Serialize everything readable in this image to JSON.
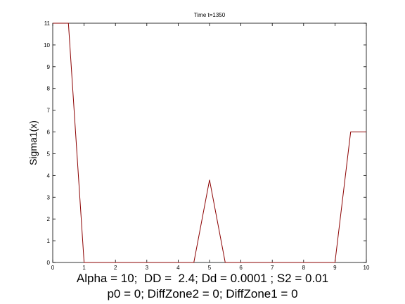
{
  "chart_data": {
    "type": "line",
    "title": "Time t=1350",
    "xlabel": "",
    "ylabel": "Sigma1(x)",
    "xlim": [
      0,
      10
    ],
    "ylim": [
      0,
      11
    ],
    "xticks": [
      0,
      1,
      2,
      3,
      4,
      5,
      6,
      7,
      8,
      9,
      10
    ],
    "yticks": [
      0,
      1,
      2,
      3,
      4,
      5,
      6,
      7,
      8,
      9,
      10,
      11
    ],
    "grid": false,
    "line_color": "#8b0000",
    "series": [
      {
        "x": [
          0,
          0.5,
          1,
          4.5,
          5,
          5.5,
          9,
          9.5,
          10
        ],
        "y": [
          11,
          11,
          0,
          0,
          3.8,
          0,
          0,
          6,
          6
        ]
      }
    ]
  },
  "caption": {
    "line1": "Alpha = 10;  DD =  2.4; Dd = 0.0001 ; S2 = 0.01",
    "line2": "p0 = 0; DiffZone2 = 0; DiffZone1 = 0"
  }
}
